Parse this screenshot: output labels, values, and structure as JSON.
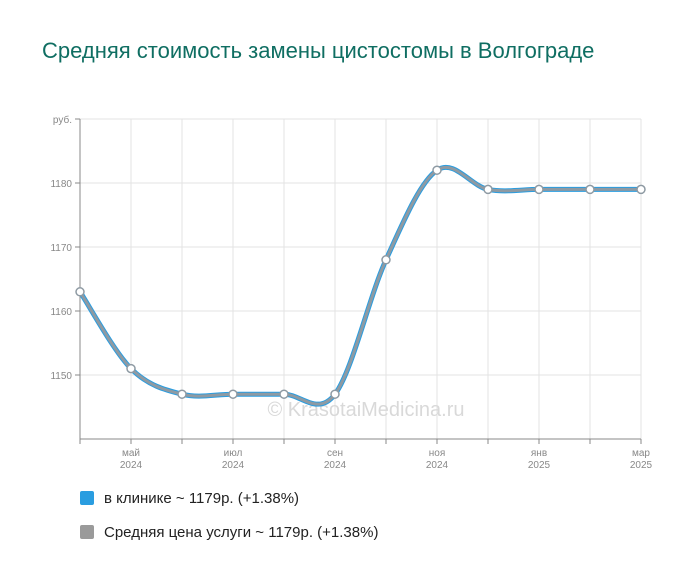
{
  "title": "Средняя стоимость замены цистостомы в Волгограде",
  "watermark": "© KrasotaiMedicina.ru",
  "legend": [
    {
      "label": "в клинике ~ 1179р. (+1.38%)",
      "color": "#2a9de0"
    },
    {
      "label": "Средняя цена услуги ~ 1179р. (+1.38%)",
      "color": "#9a9a9a"
    }
  ],
  "chart_data": {
    "type": "line",
    "title": "Средняя стоимость замены цистостомы в Волгограде",
    "ylabel": "руб.",
    "ylim": [
      1140,
      1190
    ],
    "yticks": [
      1150,
      1160,
      1170,
      1180
    ],
    "x_ticks": [
      {
        "index": 1,
        "month": "май",
        "year": "2024"
      },
      {
        "index": 3,
        "month": "июл",
        "year": "2024"
      },
      {
        "index": 5,
        "month": "сен",
        "year": "2024"
      },
      {
        "index": 7,
        "month": "ноя",
        "year": "2024"
      },
      {
        "index": 9,
        "month": "янв",
        "year": "2025"
      },
      {
        "index": 11,
        "month": "мар",
        "year": "2025"
      }
    ],
    "x": [
      "апр 2024",
      "май 2024",
      "июн 2024",
      "июл 2024",
      "авг 2024",
      "сен 2024",
      "окт 2024",
      "ноя 2024",
      "дек 2024",
      "янв 2025",
      "фев 2025",
      "мар 2025"
    ],
    "series": [
      {
        "name": "в клинике ~ 1179р. (+1.38%)",
        "color": "#2a9de0",
        "values": [
          1163,
          1151,
          1147,
          1147,
          1147,
          1147,
          1168,
          1182,
          1179,
          1179,
          1179,
          1179
        ]
      },
      {
        "name": "Средняя цена услуги ~ 1179р. (+1.38%)",
        "color": "#8e9aa3",
        "values": [
          1163,
          1151,
          1147,
          1147,
          1147,
          1147,
          1168,
          1182,
          1179,
          1179,
          1179,
          1179
        ]
      }
    ],
    "grid": true,
    "legend_position": "bottom-left"
  }
}
